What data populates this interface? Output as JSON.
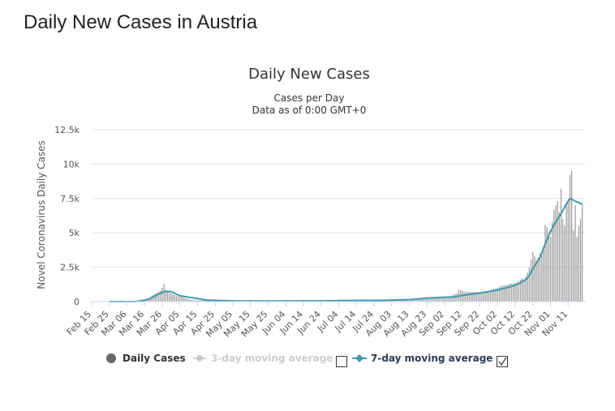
{
  "page": {
    "heading": "Daily New Cases in Austria"
  },
  "chart_data": {
    "type": "bar",
    "title": "Daily New Cases",
    "subtitle_line1": "Cases per Day",
    "subtitle_line2": "Data as of 0:00 GMT+0",
    "ylabel": "Novel Coronavirus Daily Cases",
    "ylim": [
      0,
      12500
    ],
    "y_ticks": [
      0,
      2500,
      5000,
      7500,
      10000,
      12500
    ],
    "y_tick_labels": [
      "0",
      "2.5k",
      "5k",
      "7.5k",
      "10k",
      "12.5k"
    ],
    "x_tick_labels": [
      "Feb 15",
      "Feb 25",
      "Mar 06",
      "Mar 16",
      "Mar 26",
      "Apr 05",
      "Apr 15",
      "Apr 25",
      "May 05",
      "May 15",
      "May 25",
      "Jun 04",
      "Jun 14",
      "Jun 24",
      "Jul 04",
      "Jul 14",
      "Jul 24",
      "Aug 03",
      "Aug 13",
      "Aug 23",
      "Sep 02",
      "Sep 12",
      "Sep 22",
      "Oct 02",
      "Oct 12",
      "Oct 22",
      "Nov 01",
      "Nov 11"
    ],
    "start_date": "Feb 15",
    "series": [
      {
        "name": "Daily Cases",
        "color": "#999999",
        "points": [
          [
            10,
            0
          ],
          [
            19,
            2
          ],
          [
            25,
            10
          ],
          [
            28,
            60
          ],
          [
            31,
            150
          ],
          [
            33,
            300
          ],
          [
            35,
            500
          ],
          [
            37,
            650
          ],
          [
            39,
            800
          ],
          [
            40,
            1000
          ],
          [
            41,
            1300
          ],
          [
            42,
            850
          ],
          [
            45,
            600
          ],
          [
            48,
            400
          ],
          [
            52,
            300
          ],
          [
            56,
            150
          ],
          [
            60,
            80
          ],
          [
            70,
            50
          ],
          [
            90,
            40
          ],
          [
            110,
            40
          ],
          [
            130,
            50
          ],
          [
            140,
            60
          ],
          [
            150,
            100
          ],
          [
            160,
            100
          ],
          [
            170,
            120
          ],
          [
            180,
            140
          ],
          [
            185,
            250
          ],
          [
            190,
            300
          ],
          [
            195,
            300
          ],
          [
            198,
            350
          ],
          [
            203,
            400
          ],
          [
            204,
            450
          ],
          [
            207,
            600
          ],
          [
            208,
            850
          ],
          [
            212,
            700
          ],
          [
            218,
            700
          ],
          [
            222,
            650
          ],
          [
            225,
            800
          ],
          [
            228,
            900
          ],
          [
            230,
            1000
          ],
          [
            232,
            1150
          ],
          [
            235,
            1200
          ],
          [
            237,
            1300
          ],
          [
            240,
            1350
          ],
          [
            242,
            1500
          ],
          [
            244,
            1700
          ],
          [
            245,
            1500
          ],
          [
            246,
            1800
          ],
          [
            247,
            2100
          ],
          [
            248,
            2500
          ],
          [
            250,
            3600
          ],
          [
            252,
            3000
          ],
          [
            253,
            3200
          ],
          [
            254,
            3500
          ],
          [
            255,
            3600
          ],
          [
            256,
            4000
          ],
          [
            257,
            5600
          ],
          [
            258,
            5400
          ],
          [
            259,
            5000
          ],
          [
            260,
            4700
          ],
          [
            261,
            5800
          ],
          [
            262,
            6700
          ],
          [
            263,
            7000
          ],
          [
            264,
            7300
          ],
          [
            265,
            6500
          ],
          [
            266,
            8200
          ],
          [
            267,
            6000
          ],
          [
            268,
            5500
          ],
          [
            269,
            7000
          ],
          [
            270,
            7300
          ],
          [
            271,
            9200
          ],
          [
            272,
            9500
          ],
          [
            273,
            5200
          ],
          [
            274,
            7000
          ],
          [
            275,
            4700
          ],
          [
            276,
            5500
          ],
          [
            277,
            6000
          ],
          [
            278,
            7000
          ]
        ]
      },
      {
        "name": "3-day moving average",
        "color": "#cccccc",
        "points": []
      },
      {
        "name": "7-day moving average",
        "color": "#4198b0",
        "points": [
          [
            10,
            0
          ],
          [
            19,
            1
          ],
          [
            25,
            10
          ],
          [
            30,
            100
          ],
          [
            33,
            220
          ],
          [
            35,
            350
          ],
          [
            37,
            480
          ],
          [
            39,
            600
          ],
          [
            41,
            720
          ],
          [
            43,
            730
          ],
          [
            45,
            730
          ],
          [
            47,
            600
          ],
          [
            50,
            420
          ],
          [
            55,
            320
          ],
          [
            60,
            220
          ],
          [
            65,
            100
          ],
          [
            80,
            50
          ],
          [
            100,
            40
          ],
          [
            130,
            50
          ],
          [
            150,
            80
          ],
          [
            165,
            90
          ],
          [
            180,
            140
          ],
          [
            190,
            250
          ],
          [
            200,
            320
          ],
          [
            205,
            330
          ],
          [
            210,
            450
          ],
          [
            220,
            620
          ],
          [
            230,
            840
          ],
          [
            238,
            1100
          ],
          [
            242,
            1300
          ],
          [
            246,
            1600
          ],
          [
            248,
            1900
          ],
          [
            251,
            2600
          ],
          [
            254,
            3200
          ],
          [
            257,
            4200
          ],
          [
            260,
            5100
          ],
          [
            263,
            5800
          ],
          [
            266,
            6400
          ],
          [
            269,
            7100
          ],
          [
            271,
            7500
          ],
          [
            272,
            7450
          ],
          [
            274,
            7300
          ],
          [
            276,
            7200
          ],
          [
            278,
            7050
          ]
        ]
      }
    ],
    "legend": [
      {
        "label": "Daily Cases",
        "color": "#666666",
        "symbol": "circle",
        "checkbox": false
      },
      {
        "label": "3-day moving average",
        "color": "#cccccc",
        "symbol": "circle-line",
        "checkbox": true,
        "checked": false
      },
      {
        "label": "7-day moving average",
        "color": "#2c3a55",
        "symbol": "diamond-line",
        "checkbox": true,
        "checked": true
      }
    ]
  }
}
